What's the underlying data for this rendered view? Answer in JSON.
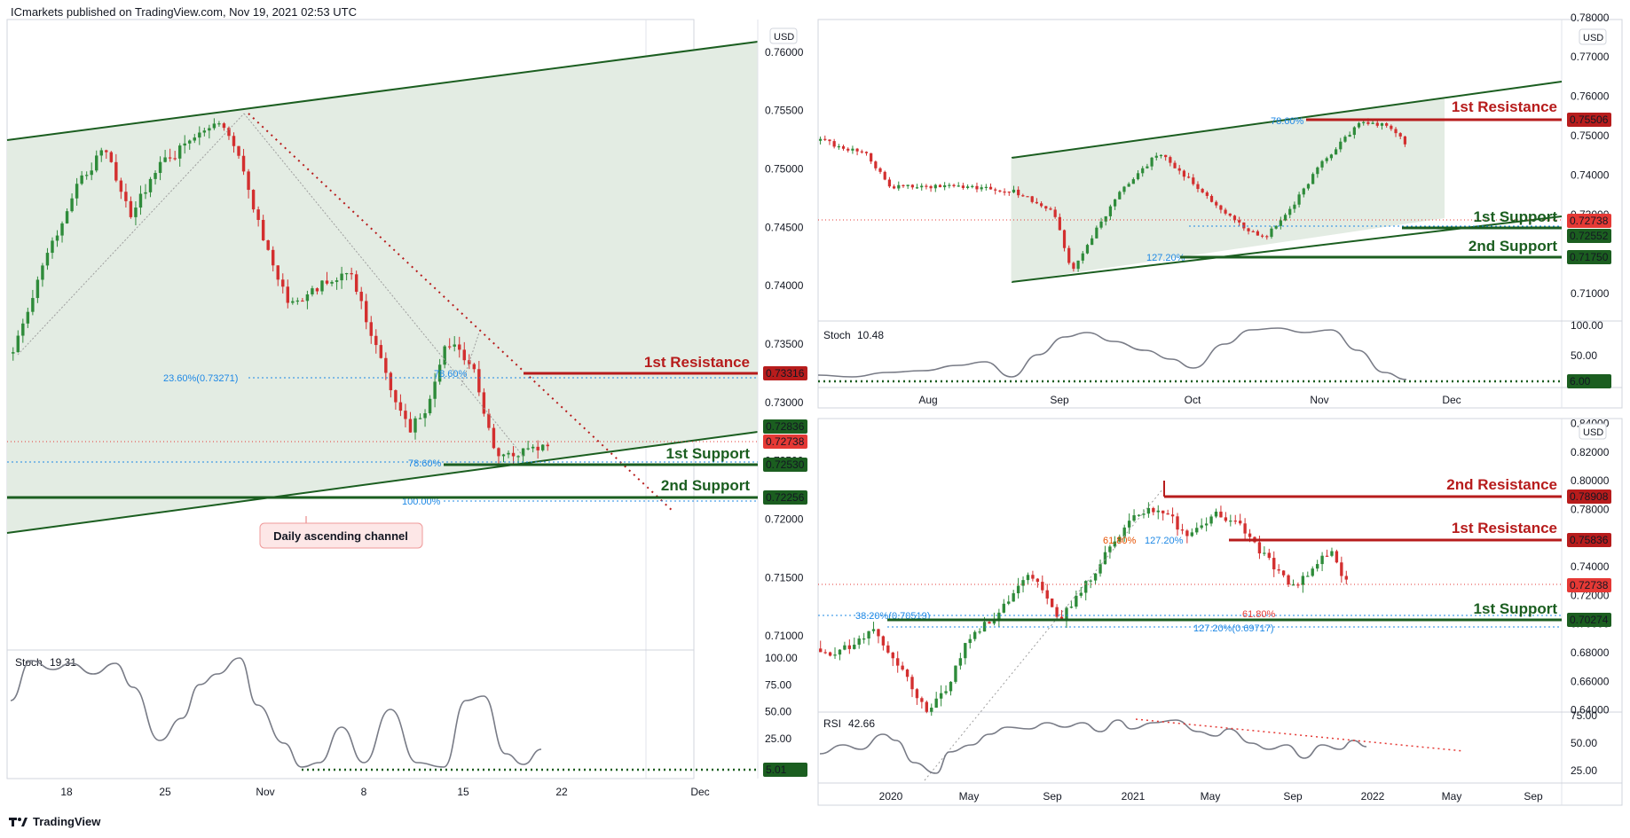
{
  "header": {
    "publisher_text": "ICmarkets published on TradingView.com, Nov 19, 2021 02:53 UTC"
  },
  "footer": {
    "brand": "TradingView"
  },
  "colors": {
    "green": "#1b5e20",
    "red": "#b71c1c",
    "blue": "#1e88e5",
    "channel_fill": "#e3ece3",
    "price_red": "#e53935",
    "stoch_line": "#787b86"
  },
  "chart_data": [
    {
      "id": "left_daily",
      "type": "candlestick",
      "currency": "USD",
      "x_ticks": [
        "18",
        "25",
        "Nov",
        "8",
        "15",
        "22",
        "Dec"
      ],
      "y_ticks": [
        "0.76000",
        "0.75500",
        "0.75000",
        "0.74500",
        "0.74000",
        "0.73500",
        "0.73000",
        "0.72500",
        "0.72000",
        "0.71500",
        "0.71000"
      ],
      "ylim": [
        0.7088,
        0.7628
      ],
      "current_price": 0.72738,
      "levels": [
        {
          "name": "1st Resistance",
          "price": 0.73316,
          "label": "0.73316",
          "color": "red"
        },
        {
          "name": "1st Support",
          "price": 0.7253,
          "label": "0.72530",
          "color": "green"
        },
        {
          "name": "2nd Support",
          "price": 0.72256,
          "label": "0.72256",
          "color": "green"
        }
      ],
      "price_tags": [
        "0.72836",
        "0.72738"
      ],
      "fib_labels": [
        "23.60%(0.73271)",
        "78.60%",
        "78.60%",
        "100.00%"
      ],
      "annotation": "Daily ascending channel",
      "oscillator": {
        "name": "Stoch",
        "value": "19.31",
        "y_ticks": [
          "100.00",
          "75.00",
          "50.00",
          "25.00"
        ],
        "level_tag": "5.01"
      }
    },
    {
      "id": "top_right_h4",
      "type": "candlestick",
      "currency": "USD",
      "x_ticks": [
        "Aug",
        "Sep",
        "Oct",
        "Nov",
        "Dec"
      ],
      "y_ticks": [
        "0.78000",
        "0.77000",
        "0.76000",
        "0.75000",
        "0.74000",
        "0.73000",
        "0.72000",
        "0.71000"
      ],
      "ylim": [
        0.703,
        0.7795
      ],
      "current_price": 0.72738,
      "levels": [
        {
          "name": "1st Resistance",
          "price": 0.75506,
          "label": "0.75506",
          "color": "red"
        },
        {
          "name": "1st Support",
          "price": 0.72552,
          "label": "0.72552",
          "color": "green"
        },
        {
          "name": "2nd Support",
          "price": 0.7175,
          "label": "0.71750",
          "color": "green"
        }
      ],
      "price_tags": [
        "0.72738"
      ],
      "fib_labels": [
        "78.60%",
        "127.20%"
      ],
      "oscillator": {
        "name": "Stoch",
        "value": "10.48",
        "y_ticks": [
          "100.00",
          "50.00"
        ],
        "level_tag": "6.00"
      }
    },
    {
      "id": "bottom_right_weekly",
      "type": "candlestick",
      "currency": "USD",
      "x_ticks": [
        "2020",
        "May",
        "Sep",
        "2021",
        "May",
        "Sep",
        "2022",
        "May",
        "Sep"
      ],
      "y_ticks": [
        "0.84000",
        "0.82000",
        "0.80000",
        "0.78000",
        "0.76000",
        "0.74000",
        "0.72000",
        "0.70000",
        "0.68000",
        "0.66000",
        "0.64000"
      ],
      "ylim": [
        0.6385,
        0.8435
      ],
      "current_price": 0.72738,
      "levels": [
        {
          "name": "2nd Resistance",
          "price": 0.78908,
          "label": "0.78908",
          "color": "red"
        },
        {
          "name": "1st Resistance",
          "price": 0.75836,
          "label": "0.75836",
          "color": "red"
        },
        {
          "name": "1st Support",
          "price": 0.70274,
          "label": "0.70274",
          "color": "green"
        }
      ],
      "price_tags": [
        "0.72738"
      ],
      "fib_labels": [
        "61.80%",
        "127.20%",
        "38.20%(0.70519)",
        "127.20%(0.69717)",
        "61.80%"
      ],
      "oscillator": {
        "name": "RSI",
        "value": "42.66",
        "y_ticks": [
          "75.00",
          "50.00",
          "25.00"
        ]
      }
    }
  ]
}
